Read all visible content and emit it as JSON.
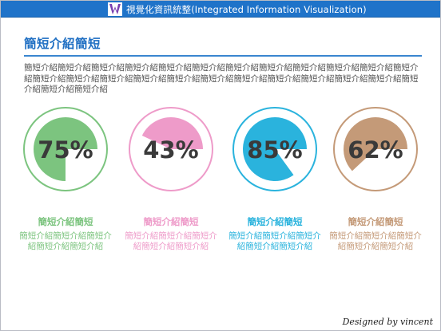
{
  "app": {
    "title": "視覺化資訊統整(Integrated Information Visualization)",
    "logo_icon": "w-logo-icon",
    "bar_color": "#1f73c9"
  },
  "page": {
    "title": "簡短介紹簡短",
    "intro": "簡短介紹簡短介紹簡短介紹簡短介紹簡短介紹簡短介紹簡短介紹簡短介紹簡短介紹簡短介紹簡短介紹簡短介紹簡短介紹簡短介紹簡短介紹簡短介紹簡短介紹簡短介紹簡短介紹簡短介紹簡短介紹簡短介紹簡短介紹簡短介紹簡短介紹簡短介紹",
    "signature": "Designed by vincent"
  },
  "chart_data": {
    "type": "pie",
    "series": [
      {
        "value": 75,
        "label": "75%",
        "caption_title": "簡短介紹簡短",
        "caption_body": "簡短介紹簡短介紹簡短介紹簡短介紹簡短介紹",
        "color": "#7cc47f"
      },
      {
        "value": 43,
        "label": "43%",
        "caption_title": "簡短介紹簡短",
        "caption_body": "簡短介紹簡短介紹簡短介紹簡短介紹簡短介紹",
        "color": "#ee9bc9"
      },
      {
        "value": 85,
        "label": "85%",
        "caption_title": "簡短介紹簡短",
        "caption_body": "簡短介紹簡短介紹簡短介紹簡短介紹簡短介紹",
        "color": "#2ab3dd"
      },
      {
        "value": 62,
        "label": "62%",
        "caption_title": "簡短介紹簡短",
        "caption_body": "簡短介紹簡短介紹簡短介紹簡短介紹簡短介紹",
        "color": "#c49a78"
      }
    ]
  }
}
